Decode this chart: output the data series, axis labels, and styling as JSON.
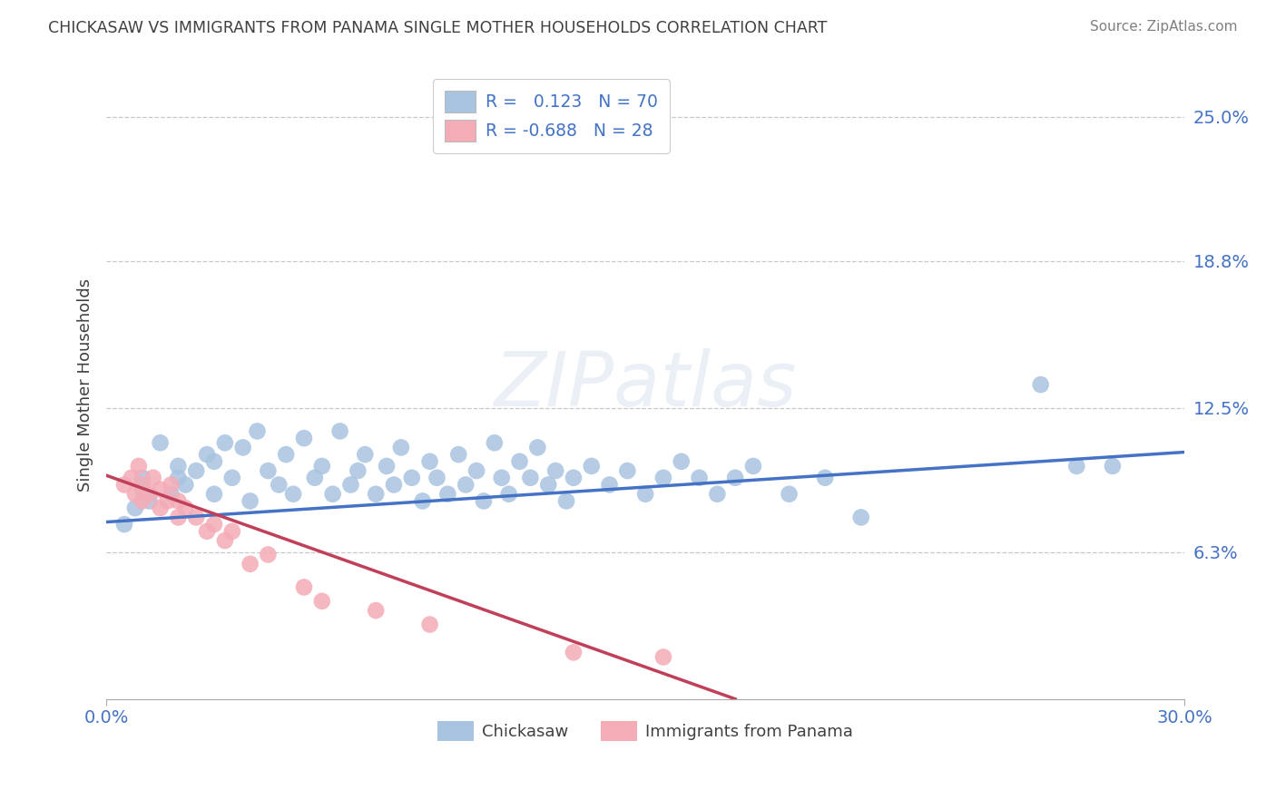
{
  "title": "CHICKASAW VS IMMIGRANTS FROM PANAMA SINGLE MOTHER HOUSEHOLDS CORRELATION CHART",
  "source": "Source: ZipAtlas.com",
  "ylabel_label": "Single Mother Households",
  "ylabel_ticks": [
    0.063,
    0.125,
    0.188,
    0.25
  ],
  "ylabel_tick_labels": [
    "6.3%",
    "12.5%",
    "18.8%",
    "25.0%"
  ],
  "xlim": [
    0.0,
    0.3
  ],
  "ylim": [
    0.0,
    0.27
  ],
  "legend_entry1": "R =   0.123   N = 70",
  "legend_entry2": "R = -0.688   N = 28",
  "legend_label1": "Chickasaw",
  "legend_label2": "Immigrants from Panama",
  "R1": 0.123,
  "N1": 70,
  "R2": -0.688,
  "N2": 28,
  "color_blue": "#a8c4e0",
  "color_blue_line": "#4472c4",
  "color_pink": "#f4acb7",
  "color_pink_line": "#c0405a",
  "title_color": "#404040",
  "source_color": "#808080",
  "tick_color": "#4472c4",
  "background_color": "#ffffff",
  "grid_color": "#c8c8c8",
  "blue_x": [
    0.005,
    0.008,
    0.01,
    0.01,
    0.012,
    0.015,
    0.018,
    0.02,
    0.02,
    0.022,
    0.025,
    0.028,
    0.03,
    0.03,
    0.033,
    0.035,
    0.038,
    0.04,
    0.042,
    0.045,
    0.048,
    0.05,
    0.052,
    0.055,
    0.058,
    0.06,
    0.063,
    0.065,
    0.068,
    0.07,
    0.072,
    0.075,
    0.078,
    0.08,
    0.082,
    0.085,
    0.088,
    0.09,
    0.092,
    0.095,
    0.098,
    0.1,
    0.103,
    0.105,
    0.108,
    0.11,
    0.112,
    0.115,
    0.118,
    0.12,
    0.123,
    0.125,
    0.128,
    0.13,
    0.135,
    0.14,
    0.145,
    0.15,
    0.155,
    0.16,
    0.165,
    0.17,
    0.175,
    0.18,
    0.19,
    0.2,
    0.21,
    0.26,
    0.27,
    0.28
  ],
  "blue_y": [
    0.075,
    0.082,
    0.09,
    0.095,
    0.085,
    0.11,
    0.088,
    0.095,
    0.1,
    0.092,
    0.098,
    0.105,
    0.088,
    0.102,
    0.11,
    0.095,
    0.108,
    0.085,
    0.115,
    0.098,
    0.092,
    0.105,
    0.088,
    0.112,
    0.095,
    0.1,
    0.088,
    0.115,
    0.092,
    0.098,
    0.105,
    0.088,
    0.1,
    0.092,
    0.108,
    0.095,
    0.085,
    0.102,
    0.095,
    0.088,
    0.105,
    0.092,
    0.098,
    0.085,
    0.11,
    0.095,
    0.088,
    0.102,
    0.095,
    0.108,
    0.092,
    0.098,
    0.085,
    0.095,
    0.1,
    0.092,
    0.098,
    0.088,
    0.095,
    0.102,
    0.095,
    0.088,
    0.095,
    0.1,
    0.088,
    0.095,
    0.078,
    0.135,
    0.1,
    0.1
  ],
  "pink_x": [
    0.005,
    0.007,
    0.008,
    0.009,
    0.01,
    0.01,
    0.012,
    0.013,
    0.015,
    0.015,
    0.017,
    0.018,
    0.02,
    0.02,
    0.022,
    0.025,
    0.028,
    0.03,
    0.033,
    0.035,
    0.04,
    0.045,
    0.055,
    0.06,
    0.075,
    0.09,
    0.13,
    0.155
  ],
  "pink_y": [
    0.092,
    0.095,
    0.088,
    0.1,
    0.085,
    0.092,
    0.088,
    0.095,
    0.082,
    0.09,
    0.085,
    0.092,
    0.078,
    0.085,
    0.082,
    0.078,
    0.072,
    0.075,
    0.068,
    0.072,
    0.058,
    0.062,
    0.048,
    0.042,
    0.038,
    0.032,
    0.02,
    0.018
  ],
  "blue_trend_x": [
    0.0,
    0.3
  ],
  "blue_trend_y": [
    0.076,
    0.106
  ],
  "pink_trend_x": [
    0.0,
    0.175
  ],
  "pink_trend_y": [
    0.096,
    0.0
  ]
}
